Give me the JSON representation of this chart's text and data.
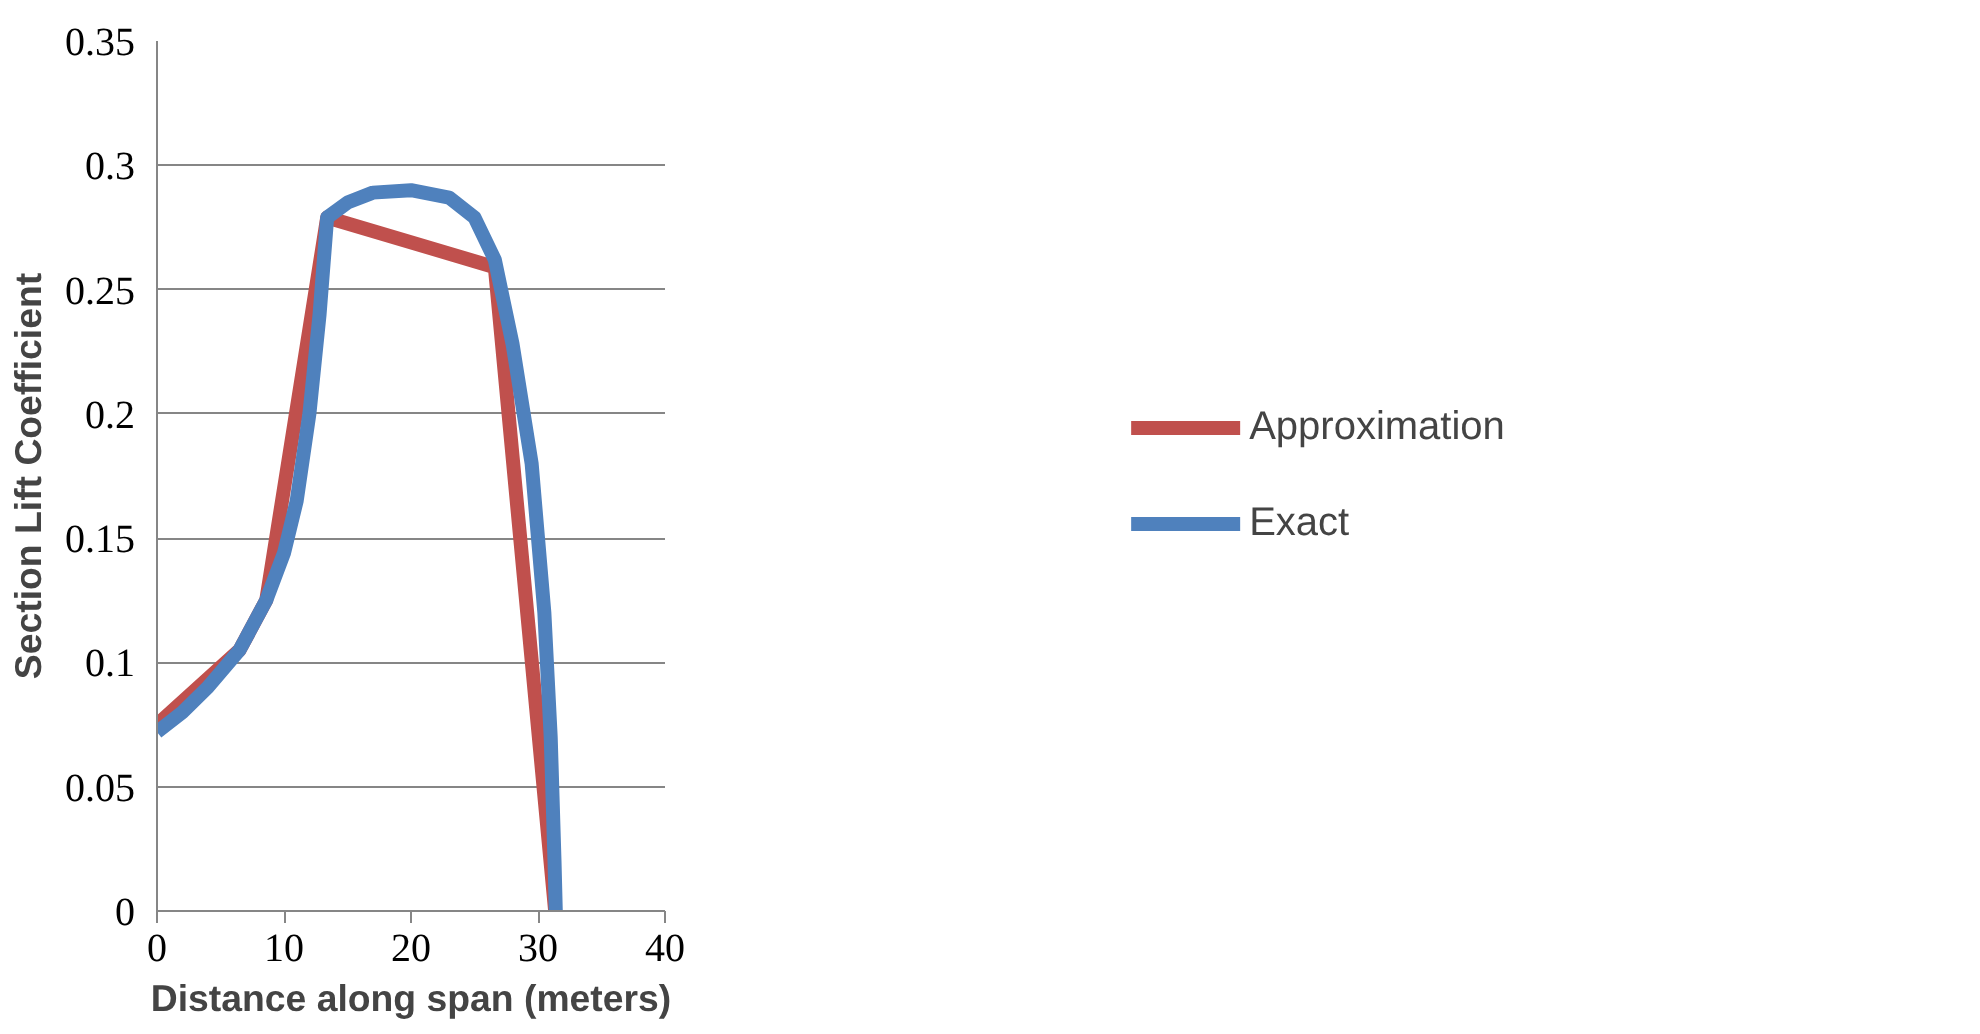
{
  "chart_data": {
    "type": "line",
    "xlabel": "Distance along span (meters)",
    "ylabel": "Section Lift Coefficient",
    "xlim": [
      0,
      40
    ],
    "xticks": [
      0,
      10,
      20,
      30,
      40
    ],
    "ylim": [
      0,
      0.35
    ],
    "yticks": [
      0,
      0.05,
      0.1,
      0.15,
      0.2,
      0.25,
      0.3,
      0.35
    ],
    "grid": "y",
    "legend": "right",
    "marker": "none",
    "line_style": "solid",
    "series": [
      {
        "name": "Approximation",
        "color": "#c0504d",
        "x": [
          0,
          6.5,
          8.6,
          13.4,
          26.6,
          31.35
        ],
        "values": [
          0.075,
          0.105,
          0.125,
          0.279,
          0.259,
          0
        ]
      },
      {
        "name": "Exact",
        "color": "#4f81bd",
        "x": [
          0,
          2,
          4,
          6.5,
          8.6,
          10,
          11,
          12,
          12.8,
          13.4,
          15,
          17,
          20,
          23,
          25,
          26.6,
          28,
          29.5,
          30.5,
          31,
          31.3,
          31.4
        ],
        "values": [
          0.072,
          0.08,
          0.09,
          0.105,
          0.125,
          0.144,
          0.165,
          0.2,
          0.24,
          0.279,
          0.285,
          0.289,
          0.29,
          0.287,
          0.279,
          0.262,
          0.228,
          0.18,
          0.12,
          0.07,
          0.02,
          0
        ]
      }
    ]
  }
}
